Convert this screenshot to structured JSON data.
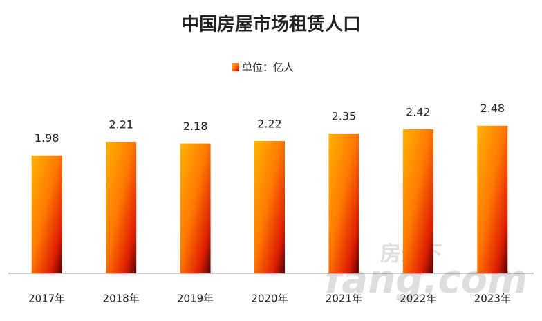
{
  "chart_data": {
    "type": "bar",
    "title": "中国房屋市场租赁人口",
    "categories": [
      "2017年",
      "2018年",
      "2019年",
      "2020年",
      "2021年",
      "2022年",
      "2023年"
    ],
    "series": [
      {
        "name": "单位：亿人",
        "color": "#ff7a00",
        "values": [
          1.98,
          2.21,
          2.18,
          2.22,
          2.35,
          2.42,
          2.48
        ]
      }
    ],
    "ylim": [
      0,
      3
    ],
    "legend": "top",
    "watermark": [
      "房天下",
      "fang.com"
    ]
  }
}
